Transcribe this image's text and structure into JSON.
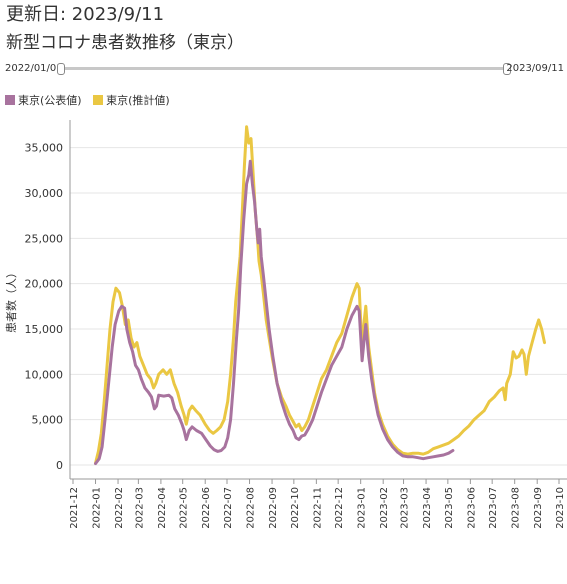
{
  "header": {
    "updated": "更新日: 2023/9/11",
    "title": "新型コロナ患者数推移（東京）"
  },
  "range": {
    "start": "2022/01/01",
    "end": "2023/09/11"
  },
  "colors": {
    "official": "#a8739e",
    "estimated": "#eac743",
    "grid": "#e6e6e6",
    "axis": "#999999"
  },
  "chart_data": {
    "type": "line",
    "title": "新型コロナ患者数推移（東京）",
    "xlabel": "",
    "ylabel": "患者数（人）",
    "x_ticks": [
      "2021-12",
      "2022-01",
      "2022-02",
      "2022-03",
      "2022-04",
      "2022-05",
      "2022-06",
      "2022-07",
      "2022-08",
      "2022-09",
      "2022-10",
      "2022-11",
      "2022-12",
      "2023-01",
      "2023-02",
      "2023-03",
      "2023-04",
      "2023-05",
      "2023-06",
      "2023-07",
      "2023-08",
      "2023-09",
      "2023-10"
    ],
    "x_range": [
      "2021-12-01",
      "2023-10-01"
    ],
    "y_ticks": [
      "0",
      "5,000",
      "10,000",
      "15,000",
      "20,000",
      "25,000",
      "30,000",
      "35,000"
    ],
    "ylim": [
      0,
      37500
    ],
    "grid": "y-only",
    "legend_position": "top-left",
    "series": [
      {
        "name": "東京(公表値)",
        "color": "#a8739e",
        "points": [
          [
            "2022-01-01",
            150
          ],
          [
            "2022-01-06",
            700
          ],
          [
            "2022-01-10",
            2000
          ],
          [
            "2022-01-14",
            5000
          ],
          [
            "2022-01-19",
            9000
          ],
          [
            "2022-01-24",
            13000
          ],
          [
            "2022-01-28",
            15500
          ],
          [
            "2022-02-02",
            17000
          ],
          [
            "2022-02-06",
            17500
          ],
          [
            "2022-02-10",
            17300
          ],
          [
            "2022-02-13",
            15000
          ],
          [
            "2022-02-17",
            13500
          ],
          [
            "2022-02-21",
            12500
          ],
          [
            "2022-02-25",
            11000
          ],
          [
            "2022-03-01",
            10500
          ],
          [
            "2022-03-05",
            9500
          ],
          [
            "2022-03-10",
            8500
          ],
          [
            "2022-03-15",
            8000
          ],
          [
            "2022-03-19",
            7500
          ],
          [
            "2022-03-23",
            6200
          ],
          [
            "2022-03-26",
            6500
          ],
          [
            "2022-03-29",
            7700
          ],
          [
            "2022-04-05",
            7600
          ],
          [
            "2022-04-12",
            7700
          ],
          [
            "2022-04-16",
            7400
          ],
          [
            "2022-04-20",
            6200
          ],
          [
            "2022-04-25",
            5500
          ],
          [
            "2022-04-30",
            4500
          ],
          [
            "2022-05-03",
            3800
          ],
          [
            "2022-05-06",
            2800
          ],
          [
            "2022-05-10",
            3800
          ],
          [
            "2022-05-14",
            4200
          ],
          [
            "2022-05-20",
            3800
          ],
          [
            "2022-05-27",
            3500
          ],
          [
            "2022-06-02",
            2800
          ],
          [
            "2022-06-08",
            2100
          ],
          [
            "2022-06-13",
            1700
          ],
          [
            "2022-06-18",
            1500
          ],
          [
            "2022-06-23",
            1600
          ],
          [
            "2022-06-28",
            2000
          ],
          [
            "2022-07-02",
            3000
          ],
          [
            "2022-07-06",
            5000
          ],
          [
            "2022-07-10",
            9000
          ],
          [
            "2022-07-14",
            14000
          ],
          [
            "2022-07-17",
            17000
          ],
          [
            "2022-07-20",
            22000
          ],
          [
            "2022-07-24",
            27000
          ],
          [
            "2022-07-28",
            31000
          ],
          [
            "2022-07-31",
            32000
          ],
          [
            "2022-08-02",
            33500
          ],
          [
            "2022-08-05",
            31000
          ],
          [
            "2022-08-08",
            29000
          ],
          [
            "2022-08-11",
            26000
          ],
          [
            "2022-08-13",
            24500
          ],
          [
            "2022-08-15",
            26000
          ],
          [
            "2022-08-17",
            23000
          ],
          [
            "2022-08-20",
            21000
          ],
          [
            "2022-08-24",
            18000
          ],
          [
            "2022-08-28",
            15000
          ],
          [
            "2022-09-02",
            12000
          ],
          [
            "2022-09-08",
            9000
          ],
          [
            "2022-09-14",
            7000
          ],
          [
            "2022-09-20",
            5500
          ],
          [
            "2022-09-25",
            4500
          ],
          [
            "2022-09-30",
            3800
          ],
          [
            "2022-10-04",
            3000
          ],
          [
            "2022-10-08",
            2800
          ],
          [
            "2022-10-12",
            3200
          ],
          [
            "2022-10-16",
            3300
          ],
          [
            "2022-10-21",
            4000
          ],
          [
            "2022-10-27",
            5000
          ],
          [
            "2022-11-02",
            6500
          ],
          [
            "2022-11-08",
            8000
          ],
          [
            "2022-11-15",
            9500
          ],
          [
            "2022-11-22",
            11000
          ],
          [
            "2022-11-29",
            12000
          ],
          [
            "2022-12-06",
            13000
          ],
          [
            "2022-12-13",
            15000
          ],
          [
            "2022-12-20",
            16500
          ],
          [
            "2022-12-27",
            17500
          ],
          [
            "2022-12-30",
            17000
          ],
          [
            "2023-01-03",
            11500
          ],
          [
            "2023-01-06",
            14000
          ],
          [
            "2023-01-08",
            15500
          ],
          [
            "2023-01-12",
            12000
          ],
          [
            "2023-01-16",
            9500
          ],
          [
            "2023-01-20",
            7500
          ],
          [
            "2023-01-25",
            5500
          ],
          [
            "2023-01-31",
            4000
          ],
          [
            "2023-02-07",
            2800
          ],
          [
            "2023-02-14",
            2000
          ],
          [
            "2023-02-21",
            1400
          ],
          [
            "2023-02-28",
            1000
          ],
          [
            "2023-03-07",
            900
          ],
          [
            "2023-03-14",
            900
          ],
          [
            "2023-03-21",
            800
          ],
          [
            "2023-03-28",
            700
          ],
          [
            "2023-04-04",
            800
          ],
          [
            "2023-04-11",
            900
          ],
          [
            "2023-04-18",
            1000
          ],
          [
            "2023-04-25",
            1100
          ],
          [
            "2023-05-02",
            1300
          ],
          [
            "2023-05-08",
            1600
          ]
        ]
      },
      {
        "name": "東京(推計値)",
        "color": "#eac743",
        "points": [
          [
            "2022-01-01",
            200
          ],
          [
            "2022-01-05",
            1500
          ],
          [
            "2022-01-09",
            3500
          ],
          [
            "2022-01-13",
            7000
          ],
          [
            "2022-01-17",
            11000
          ],
          [
            "2022-01-21",
            15000
          ],
          [
            "2022-01-25",
            18000
          ],
          [
            "2022-01-29",
            19500
          ],
          [
            "2022-02-03",
            19000
          ],
          [
            "2022-02-07",
            17500
          ],
          [
            "2022-02-11",
            15500
          ],
          [
            "2022-02-15",
            16000
          ],
          [
            "2022-02-19",
            14000
          ],
          [
            "2022-02-23",
            13000
          ],
          [
            "2022-02-27",
            13500
          ],
          [
            "2022-03-03",
            12000
          ],
          [
            "2022-03-08",
            11000
          ],
          [
            "2022-03-13",
            10000
          ],
          [
            "2022-03-18",
            9500
          ],
          [
            "2022-03-22",
            8500
          ],
          [
            "2022-03-25",
            9000
          ],
          [
            "2022-03-29",
            10000
          ],
          [
            "2022-04-04",
            10500
          ],
          [
            "2022-04-09",
            10000
          ],
          [
            "2022-04-14",
            10500
          ],
          [
            "2022-04-19",
            9000
          ],
          [
            "2022-04-24",
            8000
          ],
          [
            "2022-04-29",
            6500
          ],
          [
            "2022-05-03",
            5500
          ],
          [
            "2022-05-06",
            4500
          ],
          [
            "2022-05-10",
            6000
          ],
          [
            "2022-05-14",
            6500
          ],
          [
            "2022-05-19",
            6000
          ],
          [
            "2022-05-25",
            5500
          ],
          [
            "2022-06-01",
            4500
          ],
          [
            "2022-06-07",
            3800
          ],
          [
            "2022-06-12",
            3500
          ],
          [
            "2022-06-17",
            3800
          ],
          [
            "2022-06-22",
            4200
          ],
          [
            "2022-06-27",
            5000
          ],
          [
            "2022-07-02",
            7000
          ],
          [
            "2022-07-06",
            10000
          ],
          [
            "2022-07-10",
            14000
          ],
          [
            "2022-07-13",
            18000
          ],
          [
            "2022-07-16",
            20500
          ],
          [
            "2022-07-19",
            23000
          ],
          [
            "2022-07-22",
            28000
          ],
          [
            "2022-07-25",
            33000
          ],
          [
            "2022-07-28",
            37300
          ],
          [
            "2022-07-31",
            35500
          ],
          [
            "2022-08-03",
            36000
          ],
          [
            "2022-08-06",
            32000
          ],
          [
            "2022-08-09",
            28000
          ],
          [
            "2022-08-12",
            25000
          ],
          [
            "2022-08-14",
            22500
          ],
          [
            "2022-08-17",
            21000
          ],
          [
            "2022-08-20",
            19000
          ],
          [
            "2022-08-24",
            16000
          ],
          [
            "2022-08-28",
            14000
          ],
          [
            "2022-09-02",
            11500
          ],
          [
            "2022-09-08",
            9000
          ],
          [
            "2022-09-14",
            7500
          ],
          [
            "2022-09-20",
            6500
          ],
          [
            "2022-09-25",
            5500
          ],
          [
            "2022-09-30",
            4800
          ],
          [
            "2022-10-04",
            4200
          ],
          [
            "2022-10-08",
            4500
          ],
          [
            "2022-10-12",
            3800
          ],
          [
            "2022-10-16",
            4200
          ],
          [
            "2022-10-21",
            5000
          ],
          [
            "2022-10-27",
            6500
          ],
          [
            "2022-11-02",
            8000
          ],
          [
            "2022-11-08",
            9500
          ],
          [
            "2022-11-15",
            10500
          ],
          [
            "2022-11-22",
            12000
          ],
          [
            "2022-11-29",
            13500
          ],
          [
            "2022-12-06",
            14500
          ],
          [
            "2022-12-13",
            16500
          ],
          [
            "2022-12-20",
            18500
          ],
          [
            "2022-12-27",
            20000
          ],
          [
            "2022-12-30",
            19500
          ],
          [
            "2023-01-03",
            12500
          ],
          [
            "2023-01-06",
            16000
          ],
          [
            "2023-01-08",
            17500
          ],
          [
            "2023-01-12",
            13000
          ],
          [
            "2023-01-16",
            10500
          ],
          [
            "2023-01-20",
            8000
          ],
          [
            "2023-01-25",
            6000
          ],
          [
            "2023-01-31",
            4500
          ],
          [
            "2023-02-07",
            3200
          ],
          [
            "2023-02-14",
            2300
          ],
          [
            "2023-02-21",
            1700
          ],
          [
            "2023-02-28",
            1300
          ],
          [
            "2023-03-07",
            1200
          ],
          [
            "2023-03-14",
            1300
          ],
          [
            "2023-03-21",
            1300
          ],
          [
            "2023-03-28",
            1200
          ],
          [
            "2023-04-04",
            1400
          ],
          [
            "2023-04-11",
            1800
          ],
          [
            "2023-04-18",
            2000
          ],
          [
            "2023-04-25",
            2200
          ],
          [
            "2023-05-02",
            2400
          ],
          [
            "2023-05-09",
            2800
          ],
          [
            "2023-05-16",
            3200
          ],
          [
            "2023-05-23",
            3800
          ],
          [
            "2023-05-30",
            4300
          ],
          [
            "2023-06-06",
            5000
          ],
          [
            "2023-06-13",
            5500
          ],
          [
            "2023-06-20",
            6000
          ],
          [
            "2023-06-27",
            7000
          ],
          [
            "2023-07-04",
            7500
          ],
          [
            "2023-07-11",
            8200
          ],
          [
            "2023-07-16",
            8500
          ],
          [
            "2023-07-19",
            7200
          ],
          [
            "2023-07-21",
            9000
          ],
          [
            "2023-07-26",
            10000
          ],
          [
            "2023-07-30",
            12500
          ],
          [
            "2023-08-03",
            11800
          ],
          [
            "2023-08-07",
            12000
          ],
          [
            "2023-08-11",
            12700
          ],
          [
            "2023-08-14",
            12200
          ],
          [
            "2023-08-17",
            10000
          ],
          [
            "2023-08-20",
            12000
          ],
          [
            "2023-08-25",
            13500
          ],
          [
            "2023-08-30",
            15000
          ],
          [
            "2023-09-03",
            16000
          ],
          [
            "2023-09-07",
            15000
          ],
          [
            "2023-09-11",
            13500
          ]
        ]
      }
    ]
  }
}
